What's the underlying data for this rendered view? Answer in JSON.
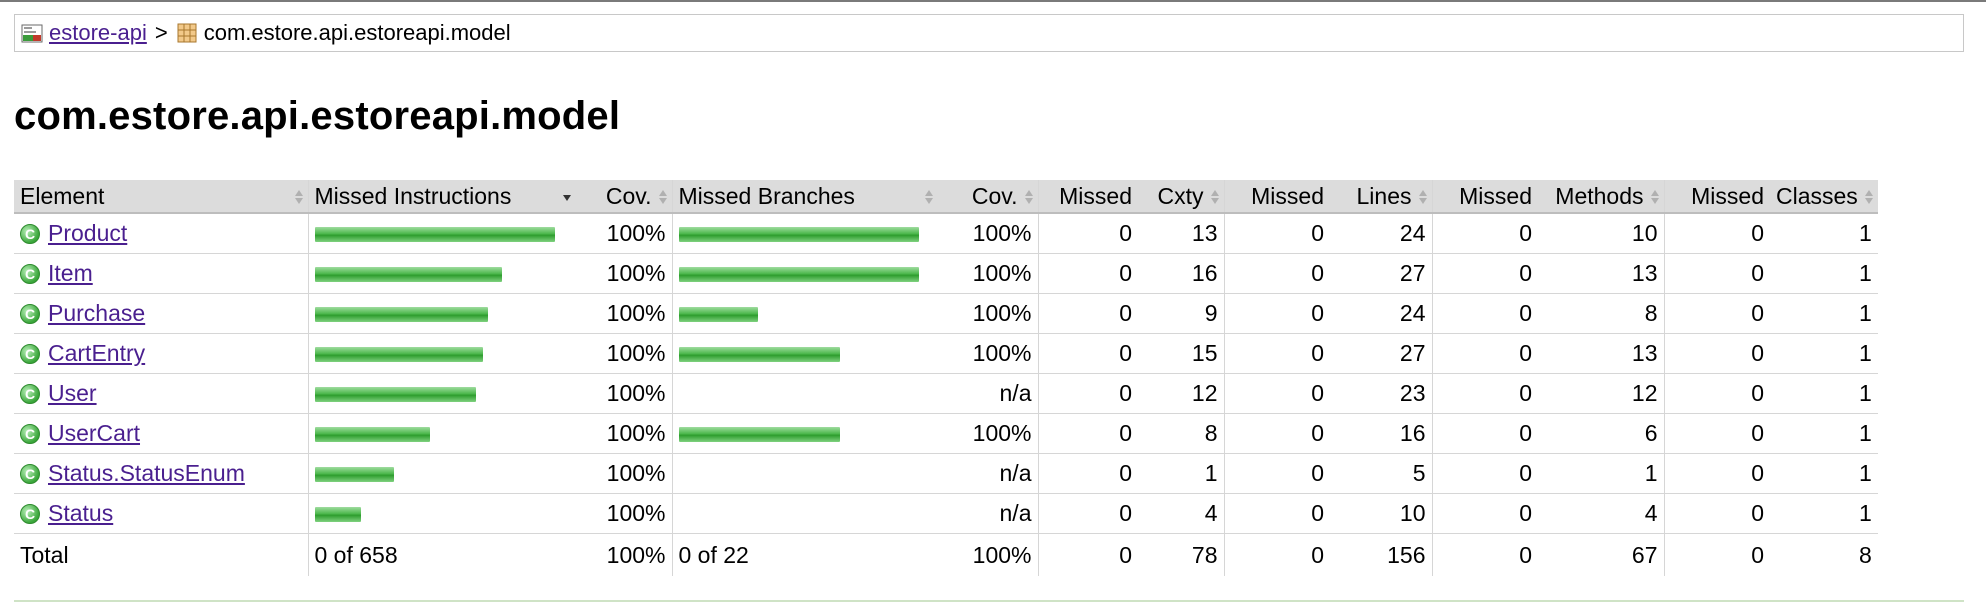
{
  "breadcrumb": {
    "root_label": "estore-api",
    "separator": ">",
    "package_label": "com.estore.api.estoreapi.model"
  },
  "page_title": "com.estore.api.estoreapi.model",
  "columns": {
    "element": "Element",
    "missed_instructions": "Missed Instructions",
    "cov1": "Cov.",
    "missed_branches": "Missed Branches",
    "cov2": "Cov.",
    "missed_cxty": "Missed",
    "cxty": "Cxty",
    "missed_lines": "Missed",
    "lines": "Lines",
    "missed_methods": "Missed",
    "methods": "Methods",
    "missed_classes": "Missed",
    "classes": "Classes"
  },
  "rows": [
    {
      "name": "Product",
      "instr_fraction": 1.0,
      "instr_cov": "100%",
      "branch_fraction": 1.0,
      "branch_cov": "100%",
      "missed_cxty": "0",
      "cxty": "13",
      "missed_lines": "0",
      "lines": "24",
      "missed_methods": "0",
      "methods": "10",
      "missed_classes": "0",
      "classes": "1"
    },
    {
      "name": "Item",
      "instr_fraction": 0.78,
      "instr_cov": "100%",
      "branch_fraction": 1.0,
      "branch_cov": "100%",
      "missed_cxty": "0",
      "cxty": "16",
      "missed_lines": "0",
      "lines": "27",
      "missed_methods": "0",
      "methods": "13",
      "missed_classes": "0",
      "classes": "1"
    },
    {
      "name": "Purchase",
      "instr_fraction": 0.72,
      "instr_cov": "100%",
      "branch_fraction": 0.33,
      "branch_cov": "100%",
      "missed_cxty": "0",
      "cxty": "9",
      "missed_lines": "0",
      "lines": "24",
      "missed_methods": "0",
      "methods": "8",
      "missed_classes": "0",
      "classes": "1"
    },
    {
      "name": "CartEntry",
      "instr_fraction": 0.7,
      "instr_cov": "100%",
      "branch_fraction": 0.67,
      "branch_cov": "100%",
      "missed_cxty": "0",
      "cxty": "15",
      "missed_lines": "0",
      "lines": "27",
      "missed_methods": "0",
      "methods": "13",
      "missed_classes": "0",
      "classes": "1"
    },
    {
      "name": "User",
      "instr_fraction": 0.67,
      "instr_cov": "100%",
      "branch_fraction": 0,
      "branch_cov": "n/a",
      "missed_cxty": "0",
      "cxty": "12",
      "missed_lines": "0",
      "lines": "23",
      "missed_methods": "0",
      "methods": "12",
      "missed_classes": "0",
      "classes": "1"
    },
    {
      "name": "UserCart",
      "instr_fraction": 0.48,
      "instr_cov": "100%",
      "branch_fraction": 0.67,
      "branch_cov": "100%",
      "missed_cxty": "0",
      "cxty": "8",
      "missed_lines": "0",
      "lines": "16",
      "missed_methods": "0",
      "methods": "6",
      "missed_classes": "0",
      "classes": "1"
    },
    {
      "name": "Status.StatusEnum",
      "instr_fraction": 0.33,
      "instr_cov": "100%",
      "branch_fraction": 0,
      "branch_cov": "n/a",
      "missed_cxty": "0",
      "cxty": "1",
      "missed_lines": "0",
      "lines": "5",
      "missed_methods": "0",
      "methods": "1",
      "missed_classes": "0",
      "classes": "1"
    },
    {
      "name": "Status",
      "instr_fraction": 0.19,
      "instr_cov": "100%",
      "branch_fraction": 0,
      "branch_cov": "n/a",
      "missed_cxty": "0",
      "cxty": "4",
      "missed_lines": "0",
      "lines": "10",
      "missed_methods": "0",
      "methods": "4",
      "missed_classes": "0",
      "classes": "1"
    }
  ],
  "total": {
    "label": "Total",
    "instr": "0 of 658",
    "instr_cov": "100%",
    "branch": "0 of 22",
    "branch_cov": "100%",
    "missed_cxty": "0",
    "cxty": "78",
    "missed_lines": "0",
    "lines": "156",
    "missed_methods": "0",
    "methods": "67",
    "missed_classes": "0",
    "classes": "8"
  },
  "colors": {
    "link": "#4a1f8f",
    "bar_green": "#4cb84c",
    "header_bg": "#dcdcdc"
  },
  "icons": {
    "report": "report-folder-icon",
    "package": "package-icon",
    "class": "class-icon",
    "sort": "sort-icon"
  }
}
